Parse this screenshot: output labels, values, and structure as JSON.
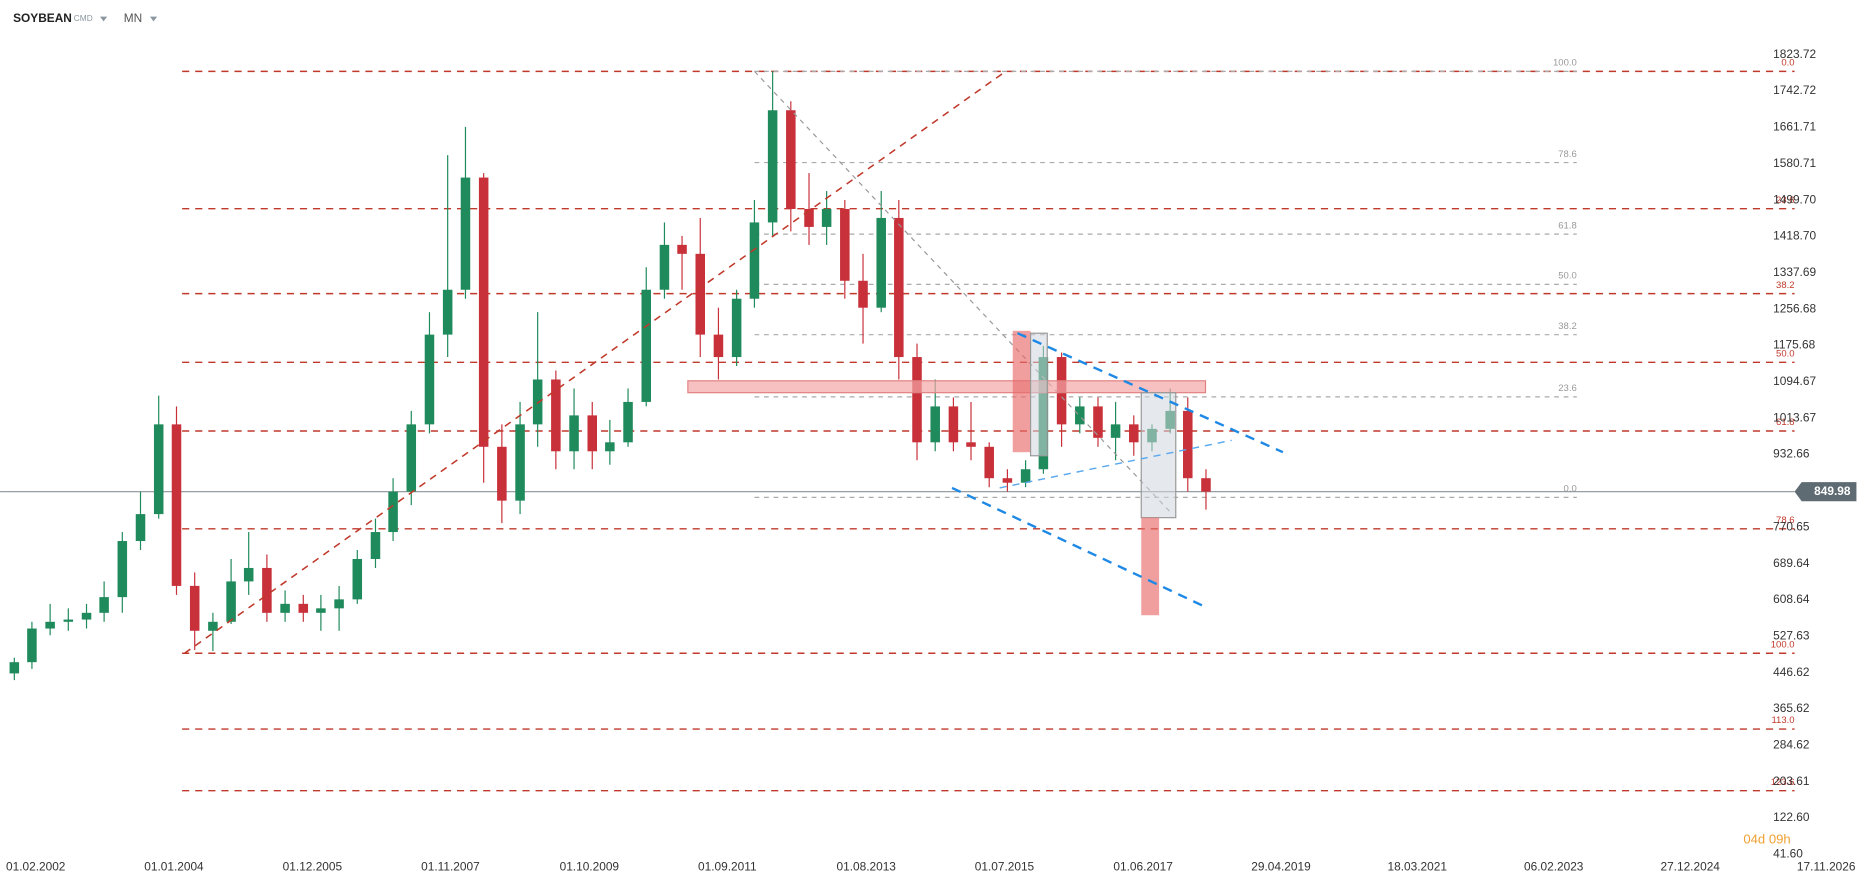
{
  "chart_data": {
    "type": "candlestick",
    "title": "SOYBEAN",
    "instrument_type": "CMD",
    "interval": "MN",
    "countdown": "04d 09h",
    "up_color": "#1f8a5b",
    "down_color": "#c8303a",
    "x": [
      "01.02.2002",
      "01.05.2002",
      "01.08.2002",
      "01.11.2002",
      "01.02.2003",
      "01.05.2003",
      "01.08.2003",
      "01.11.2003",
      "01.02.2004",
      "01.05.2004",
      "01.08.2004",
      "01.11.2004",
      "01.02.2005",
      "01.05.2005",
      "01.08.2005",
      "01.11.2005",
      "01.02.2006",
      "01.05.2006",
      "01.08.2006",
      "01.11.2006",
      "01.02.2007",
      "01.05.2007",
      "01.08.2007",
      "01.11.2007",
      "01.02.2008",
      "01.05.2008",
      "01.08.2008",
      "01.11.2008",
      "01.02.2009",
      "01.05.2009",
      "01.08.2009",
      "01.11.2009",
      "01.02.2010",
      "01.05.2010",
      "01.08.2010",
      "01.11.2010",
      "01.02.2011",
      "01.05.2011",
      "01.08.2011",
      "01.11.2011",
      "01.02.2012",
      "01.05.2012",
      "01.08.2012",
      "01.11.2012",
      "01.02.2013",
      "01.05.2013",
      "01.08.2013",
      "01.11.2013",
      "01.02.2014",
      "01.05.2014",
      "01.08.2014",
      "01.11.2014",
      "01.02.2015",
      "01.05.2015",
      "01.08.2015",
      "01.11.2015",
      "01.02.2016",
      "01.05.2016",
      "01.08.2016",
      "01.11.2016",
      "01.02.2017",
      "01.05.2017",
      "01.08.2017",
      "01.11.2017",
      "01.02.2018",
      "01.05.2018",
      "01.08.2018"
    ],
    "open": [
      445,
      470,
      545,
      560,
      565,
      580,
      615,
      740,
      800,
      1000,
      640,
      540,
      560,
      650,
      680,
      580,
      600,
      580,
      590,
      610,
      700,
      760,
      850,
      1000,
      1200,
      1300,
      1550,
      950,
      830,
      1000,
      1100,
      940,
      1020,
      940,
      960,
      1050,
      1300,
      1400,
      1380,
      1200,
      1150,
      1280,
      1450,
      1700,
      1480,
      1440,
      1480,
      1320,
      1260,
      1460,
      1150,
      960,
      1040,
      960,
      950,
      880,
      870,
      900,
      1150,
      1000,
      1040,
      970,
      1000,
      960,
      990,
      1030,
      880
    ],
    "high": [
      480,
      560,
      600,
      590,
      600,
      650,
      760,
      850,
      1064,
      1040,
      670,
      580,
      700,
      760,
      710,
      630,
      620,
      620,
      640,
      720,
      790,
      880,
      1030,
      1250,
      1600,
      1663,
      1560,
      1000,
      1050,
      1250,
      1120,
      1080,
      1050,
      1010,
      1080,
      1350,
      1450,
      1420,
      1460,
      1260,
      1300,
      1500,
      1787,
      1720,
      1560,
      1520,
      1500,
      1380,
      1520,
      1500,
      1180,
      1100,
      1060,
      1050,
      960,
      900,
      920,
      1175,
      1160,
      1060,
      1060,
      1050,
      1020,
      1000,
      1080,
      1060,
      900
    ],
    "low": [
      430,
      455,
      530,
      540,
      545,
      560,
      580,
      720,
      790,
      620,
      497,
      495,
      555,
      620,
      560,
      560,
      560,
      540,
      540,
      600,
      680,
      740,
      820,
      980,
      1150,
      1280,
      870,
      780,
      800,
      950,
      900,
      900,
      900,
      910,
      950,
      1040,
      1280,
      1300,
      1150,
      1100,
      1130,
      1260,
      1420,
      1430,
      1400,
      1400,
      1280,
      1180,
      1250,
      1100,
      920,
      940,
      940,
      920,
      860,
      850,
      860,
      890,
      950,
      980,
      950,
      920,
      930,
      940,
      980,
      850,
      810
    ],
    "close": [
      470,
      545,
      560,
      565,
      580,
      615,
      740,
      800,
      1000,
      640,
      540,
      560,
      650,
      680,
      580,
      600,
      580,
      590,
      610,
      700,
      760,
      850,
      1000,
      1200,
      1300,
      1550,
      950,
      830,
      1000,
      1100,
      940,
      1020,
      940,
      960,
      1050,
      1300,
      1400,
      1380,
      1200,
      1150,
      1280,
      1450,
      1700,
      1480,
      1440,
      1480,
      1320,
      1260,
      1460,
      1150,
      960,
      1040,
      960,
      950,
      880,
      870,
      900,
      1150,
      1000,
      1040,
      970,
      1000,
      960,
      990,
      1030,
      880,
      850
    ],
    "xlim": [
      "01.02.2002",
      "17.11.2026"
    ],
    "xticks": [
      "01.02.2002",
      "01.01.2004",
      "01.12.2005",
      "01.11.2007",
      "01.10.2009",
      "01.09.2011",
      "01.08.2013",
      "01.07.2015",
      "01.06.2017",
      "29.04.2019",
      "18.03.2021",
      "06.02.2023",
      "27.12.2024",
      "17.11.2026"
    ],
    "ylim": [
      41.6,
      1823.72
    ],
    "yticks": [
      1823.72,
      1742.72,
      1661.71,
      1580.71,
      {
        "value": 1499.7,
        "label": "1499.70"
      },
      {
        "value": 1418.7,
        "label": "1418.70"
      },
      1337.69,
      1256.68,
      1175.68,
      1094.67,
      1013.67,
      932.66,
      770.65,
      689.64,
      608.64,
      527.63,
      446.62,
      365.62,
      284.62,
      203.61,
      {
        "value": 122.6,
        "label": "122.60"
      },
      {
        "value": 41.6,
        "label": "41.60"
      }
    ],
    "current_price": 849.98,
    "fib_levels": {
      "labels": [
        "0.0",
        "23.6",
        "38.2",
        "50.0",
        "61.8",
        "78.6",
        "100.0",
        "113.0",
        "123.6"
      ],
      "values": [
        1786.6,
        1480.6,
        1291.3,
        1138.2,
        985.2,
        767.3,
        489.9,
        321,
        183.6
      ]
    },
    "fib_levels_2": {
      "labels": [
        "100.0",
        "78.6",
        "61.8",
        "50.0",
        "38.2",
        "23.6",
        "0.0"
      ],
      "values": [
        1786.6,
        1583.4,
        1424,
        1311.9,
        1199.9,
        1061.3,
        837.3
      ]
    }
  }
}
